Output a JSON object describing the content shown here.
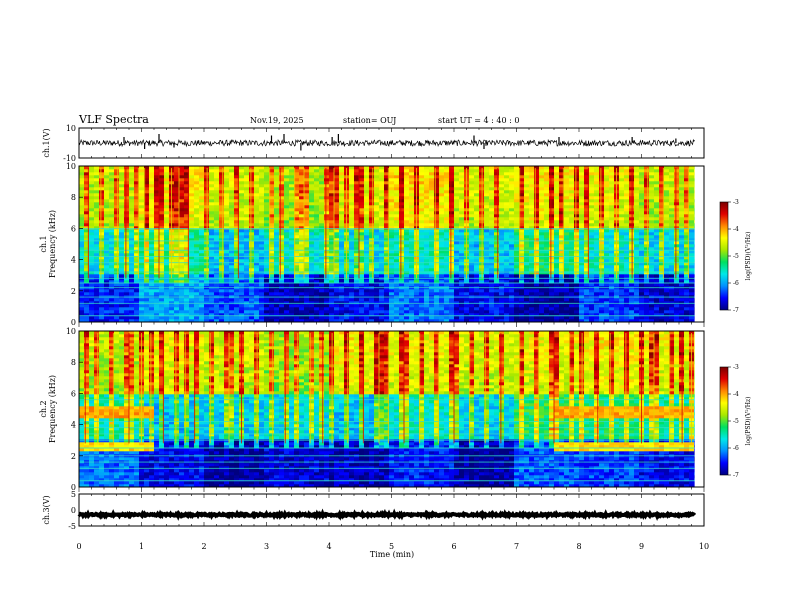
{
  "header": {
    "title": "VLF Spectra",
    "date": "Nov.19, 2025",
    "station": "station= OUJ",
    "start": "start  UT =   4 : 40 : 0"
  },
  "colorbar_label": "log(PSD)(V²/Hz)",
  "colors": {
    "scale": [
      "#000080",
      "#0000ff",
      "#0090ff",
      "#00e8e8",
      "#00e060",
      "#a8e800",
      "#ffff00",
      "#ff8800",
      "#e00000",
      "#7a0000"
    ],
    "trace": "#000000",
    "frame": "#000000"
  },
  "chart_data": [
    {
      "type": "line",
      "name": "ch.1 waveform",
      "ylabel": "ch.1(V)",
      "ylim": [
        -10,
        10
      ],
      "yticks": [
        "10",
        "-10"
      ],
      "xlim": [
        0,
        10
      ],
      "baseline": 0,
      "noise_amplitude": 2,
      "spikes_min": [
        0.72,
        1.05,
        1.28,
        1.52,
        3.08,
        3.28,
        3.55,
        4.05,
        4.15,
        6.32,
        6.48,
        7.68,
        8.85,
        9.55
      ],
      "spike_values": [
        4,
        -4,
        6,
        -3,
        5,
        6,
        -5,
        4,
        6,
        5,
        -4,
        4,
        4,
        3
      ]
    },
    {
      "type": "heatmap",
      "name": "ch.1 spectrogram",
      "ylabel": "ch.1\nFrequency (kHz)",
      "x_label": "Time (min)",
      "xlim": [
        0,
        10
      ],
      "ylim": [
        0,
        10
      ],
      "yticks": [
        "0",
        "2",
        "4",
        "6",
        "8",
        "10"
      ],
      "colorbar": {
        "range": [
          -7,
          -3
        ],
        "ticks": [
          "-3",
          "-4",
          "-5",
          "-6",
          "-7"
        ]
      },
      "low_band_levels": [
        -6.5,
        -6.0,
        -6.3,
        -6.8,
        -6.6,
        -6.2,
        -6.6,
        -6.9,
        -6.4,
        -6.7
      ],
      "mid_band_levels": [
        -5.7,
        -5.4,
        -5.9,
        -5.6,
        -5.8,
        -5.5,
        -5.9,
        -5.3,
        -5.6,
        -5.8
      ],
      "high_band_levels": [
        -4.8,
        -4.5,
        -4.7,
        -4.9,
        -4.6,
        -4.4,
        -4.7,
        -4.5,
        -4.6,
        -4.8
      ],
      "hum_lines_khz": [
        0.4,
        1.2,
        1.6,
        2.2,
        2.5,
        2.8,
        3.2,
        3.8,
        4.2,
        4.6,
        5.2,
        6.0
      ],
      "burst_times_min": [
        0.15,
        0.35,
        0.62,
        0.75,
        0.95,
        1.05,
        1.28,
        1.48,
        1.6,
        1.75,
        2.05,
        2.3,
        2.55,
        2.75,
        3.05,
        3.22,
        3.45,
        3.6,
        3.95,
        4.08,
        4.28,
        4.48,
        4.7,
        4.95,
        5.15,
        5.4,
        5.7,
        5.95,
        6.2,
        6.45,
        6.7,
        7.05,
        7.3,
        7.55,
        7.75,
        7.95,
        8.15,
        8.35,
        8.6,
        8.85,
        9.1,
        9.35,
        9.55,
        9.75
      ]
    },
    {
      "type": "heatmap",
      "name": "ch.2 spectrogram",
      "ylabel": "ch.2\nFrequency (kHz)",
      "x_label": "Time (min)",
      "xlim": [
        0,
        10
      ],
      "ylim": [
        0,
        10
      ],
      "yticks": [
        "0",
        "2",
        "4",
        "6",
        "8",
        "10"
      ],
      "colorbar": {
        "range": [
          -7,
          -3
        ],
        "ticks": [
          "-3",
          "-4",
          "-5",
          "-6",
          "-7"
        ]
      },
      "low_band_levels": [
        -6.2,
        -6.6,
        -6.9,
        -6.7,
        -6.8,
        -6.5,
        -6.9,
        -6.3,
        -6.4,
        -6.6
      ],
      "mid_band_levels": [
        -5.5,
        -5.9,
        -5.8,
        -5.7,
        -5.9,
        -5.6,
        -5.8,
        -5.2,
        -5.3,
        -5.5
      ],
      "high_band_levels": [
        -4.8,
        -4.6,
        -4.7,
        -4.9,
        -4.5,
        -4.6,
        -4.7,
        -4.6,
        -4.5,
        -4.6
      ],
      "band_khz": [
        4.5,
        5.2
      ],
      "band_khz_2": [
        2.3,
        2.8
      ],
      "band_active_min": [
        [
          0,
          1.2
        ],
        [
          7.6,
          9.8
        ]
      ],
      "hum_lines_khz": [
        0.4,
        1.2,
        1.6,
        2.0,
        2.5,
        3.0,
        3.4,
        3.8,
        4.2,
        5.6
      ],
      "burst_times_min": [
        0.1,
        0.3,
        0.55,
        0.8,
        1.0,
        1.15,
        1.35,
        1.55,
        1.7,
        1.85,
        2.1,
        2.4,
        2.6,
        2.85,
        3.1,
        3.3,
        3.5,
        3.7,
        3.9,
        4.05,
        4.3,
        4.55,
        4.8,
        4.95,
        5.2,
        5.45,
        5.75,
        6.0,
        6.25,
        6.5,
        6.75,
        7.05,
        7.35,
        7.6,
        7.85,
        8.05,
        8.3,
        8.5,
        8.75,
        9.0,
        9.2,
        9.45,
        9.65,
        9.8
      ]
    },
    {
      "type": "line",
      "name": "ch.3 waveform",
      "ylabel": "ch.3(V)",
      "ylim": [
        -5,
        5
      ],
      "yticks": [
        "5",
        "0",
        "-5"
      ],
      "xlim": [
        0,
        10
      ],
      "baseline": -1.5,
      "noise_amplitude": 0.3,
      "x_label": "Time (min)",
      "xticks": [
        "0",
        "1",
        "2",
        "3",
        "4",
        "5",
        "6",
        "7",
        "8",
        "9",
        "10"
      ]
    }
  ]
}
